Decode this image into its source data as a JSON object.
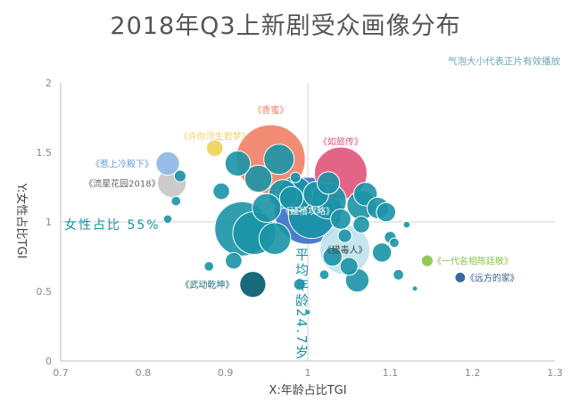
{
  "chart_data": {
    "type": "scatter",
    "title": "2018年Q3上新剧受众画像分布",
    "xlabel": "X:年龄占比TGI",
    "ylabel": "Y:女性占比TGI",
    "xlim": [
      0.7,
      1.3
    ],
    "ylim": [
      0,
      2
    ],
    "x_ticks": [
      "0.7",
      "0.8",
      "0.9",
      "1",
      "1.1",
      "1.2",
      "1.3"
    ],
    "y_ticks": [
      "0",
      "0.5",
      "1",
      "1.5",
      "2"
    ],
    "grid": false,
    "bubble_note": "气泡大小代表正片有效播放",
    "reference_lines": {
      "female_share": {
        "y": 1.0,
        "label": "女性占比 55%"
      },
      "average_age": {
        "x": 1.0,
        "label": "平均年龄24.7岁"
      }
    },
    "colors": {
      "teal": "#1a93a6",
      "blue": "#3f72c8",
      "orange": "#f2836b",
      "pink": "#e2587f",
      "yellow": "#f1d25c",
      "green": "#8bc34a",
      "navy": "#2a5c97",
      "light_blue": "#8fb8e6",
      "gray": "#c7c7c7",
      "light_cyan": "#bfe3ef",
      "dark_teal": "#176a7a"
    },
    "labeled_points": [
      {
        "name": "《香蜜》",
        "x": 0.955,
        "y": 1.45,
        "size": 5.2,
        "color": "orange"
      },
      {
        "name": "《如懿传》",
        "x": 1.04,
        "y": 1.35,
        "size": 3.0,
        "color": "pink"
      },
      {
        "name": "《延禧攻略》",
        "x": 1.0,
        "y": 1.08,
        "size": 4.9,
        "color": "blue"
      },
      {
        "name": "《许你浮生若梦》",
        "x": 0.887,
        "y": 1.53,
        "size": 0.3,
        "color": "yellow"
      },
      {
        "name": "《惹上冷殿下》",
        "x": 0.83,
        "y": 1.42,
        "size": 0.6,
        "color": "light_blue"
      },
      {
        "name": "《流星花园2018》",
        "x": 0.835,
        "y": 1.28,
        "size": 0.9,
        "color": "gray"
      },
      {
        "name": "《猎毒人》",
        "x": 1.045,
        "y": 0.8,
        "size": 2.7,
        "color": "light_cyan"
      },
      {
        "name": "《武动乾坤》",
        "x": 0.93,
        "y": 0.55,
        "size": 0.9,
        "color": "dark_teal"
      },
      {
        "name": "《一代名相陈廷敬》",
        "x": 1.145,
        "y": 0.72,
        "size": 0.15,
        "color": "green"
      },
      {
        "name": "《远方的家》",
        "x": 1.185,
        "y": 0.6,
        "size": 0.12,
        "color": "navy"
      }
    ],
    "other_points": [
      {
        "x": 0.92,
        "y": 0.95,
        "size": 3.2
      },
      {
        "x": 0.935,
        "y": 0.92,
        "size": 2.0
      },
      {
        "x": 0.96,
        "y": 0.88,
        "size": 1.1
      },
      {
        "x": 0.965,
        "y": 1.45,
        "size": 1.0
      },
      {
        "x": 0.97,
        "y": 1.2,
        "size": 0.9
      },
      {
        "x": 0.94,
        "y": 1.31,
        "size": 0.8
      },
      {
        "x": 0.915,
        "y": 1.42,
        "size": 0.7
      },
      {
        "x": 0.985,
        "y": 1.2,
        "size": 1.3
      },
      {
        "x": 0.95,
        "y": 1.1,
        "size": 0.9
      },
      {
        "x": 1.01,
        "y": 1.2,
        "size": 0.7
      },
      {
        "x": 1.025,
        "y": 1.15,
        "size": 1.4
      },
      {
        "x": 1.025,
        "y": 1.28,
        "size": 0.55
      },
      {
        "x": 1.04,
        "y": 1.02,
        "size": 0.45
      },
      {
        "x": 1.065,
        "y": 1.12,
        "size": 0.9
      },
      {
        "x": 1.07,
        "y": 1.2,
        "size": 0.6
      },
      {
        "x": 1.085,
        "y": 1.1,
        "size": 0.5
      },
      {
        "x": 1.095,
        "y": 1.07,
        "size": 0.4
      },
      {
        "x": 1.065,
        "y": 0.98,
        "size": 0.3
      },
      {
        "x": 1.03,
        "y": 0.75,
        "size": 0.4
      },
      {
        "x": 1.05,
        "y": 0.68,
        "size": 0.35
      },
      {
        "x": 1.06,
        "y": 0.58,
        "size": 0.6
      },
      {
        "x": 1.09,
        "y": 0.78,
        "size": 0.4
      },
      {
        "x": 1.1,
        "y": 0.89,
        "size": 0.15
      },
      {
        "x": 1.105,
        "y": 0.85,
        "size": 0.1
      },
      {
        "x": 1.11,
        "y": 0.62,
        "size": 0.12
      },
      {
        "x": 1.12,
        "y": 0.98,
        "size": 0.05
      },
      {
        "x": 1.13,
        "y": 0.52,
        "size": 0.03
      },
      {
        "x": 1.02,
        "y": 0.62,
        "size": 0.1
      },
      {
        "x": 0.91,
        "y": 0.72,
        "size": 0.3
      },
      {
        "x": 0.88,
        "y": 0.68,
        "size": 0.1
      },
      {
        "x": 0.895,
        "y": 1.22,
        "size": 0.3
      },
      {
        "x": 0.84,
        "y": 1.15,
        "size": 0.1
      },
      {
        "x": 0.845,
        "y": 1.33,
        "size": 0.15
      },
      {
        "x": 0.83,
        "y": 1.02,
        "size": 0.08
      },
      {
        "x": 0.99,
        "y": 0.55,
        "size": 0.15
      },
      {
        "x": 0.985,
        "y": 1.32,
        "size": 0.12
      },
      {
        "x": 1.0,
        "y": 0.35,
        "size": 0.03
      },
      {
        "x": 0.98,
        "y": 1.17,
        "size": 0.6
      },
      {
        "x": 1.005,
        "y": 1.05,
        "size": 2.4
      },
      {
        "x": 1.045,
        "y": 0.9,
        "size": 0.2
      }
    ]
  }
}
